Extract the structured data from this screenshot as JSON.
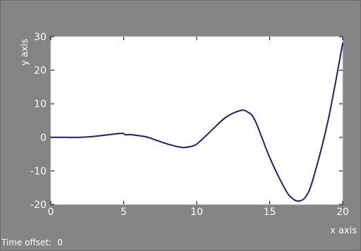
{
  "chart_data": {
    "type": "line",
    "title": "",
    "xlabel": "x axis",
    "ylabel": "y axis",
    "xlim": [
      0,
      20
    ],
    "ylim": [
      -20,
      30
    ],
    "xticks": [
      0,
      5,
      10,
      15,
      20
    ],
    "yticks": [
      -20,
      -10,
      0,
      10,
      20,
      30
    ],
    "grid": false,
    "line_color": "#2a1a66",
    "background_color": "#848484",
    "plot_area_color": "#ffffff",
    "series": [
      {
        "x": [
          0,
          1,
          2,
          3,
          4,
          4.9,
          5.1,
          5.5,
          6,
          6.5,
          7,
          8,
          9,
          9.5,
          10,
          11,
          12,
          13,
          13.5,
          14,
          15,
          16,
          16.5,
          17,
          17.5,
          18,
          19,
          20
        ],
        "y": [
          0,
          0,
          0,
          0.3,
          0.8,
          1.2,
          0.8,
          0.8,
          0.5,
          0.2,
          -0.5,
          -2,
          -3,
          -2.8,
          -2,
          2,
          6,
          8,
          7.5,
          5,
          -6,
          -15,
          -18,
          -19,
          -17.5,
          -12,
          5,
          28
        ]
      }
    ]
  },
  "status": {
    "time_offset_label": "Time offset:",
    "time_offset_value": "0"
  }
}
